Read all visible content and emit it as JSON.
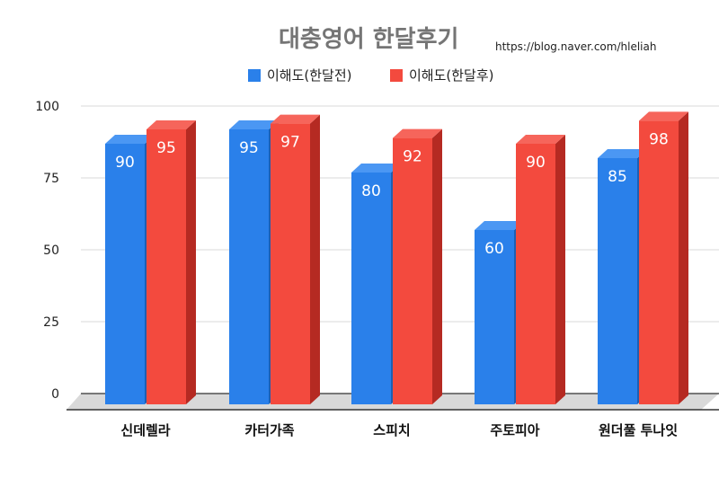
{
  "title": "대충영어 한달후기",
  "watermark": "https://blog.naver.com/hleliah",
  "colors": {
    "series_1": "#2a80ea",
    "series_1_top": "#4b97f3",
    "series_1_side": "#1d5fb3",
    "series_2": "#f34a3e",
    "series_2_top": "#f6655b",
    "series_2_side": "#b52a22",
    "grid": "#d9d9d9",
    "floor": "#d9d9d9",
    "axis": "#333333"
  },
  "chart_data": {
    "type": "bar",
    "title": "대충영어 한달후기",
    "xlabel": "",
    "ylabel": "",
    "ylim": [
      0,
      100
    ],
    "yticks": [
      "0",
      "25",
      "50",
      "75",
      "100"
    ],
    "categories": [
      "신데렐라",
      "카터가족",
      "스피치",
      "주토피아",
      "원더풀 투나잇"
    ],
    "series": [
      {
        "name": "이해도(한달전)",
        "values": [
          90,
          95,
          80,
          60,
          85
        ]
      },
      {
        "name": "이해도(한달후)",
        "values": [
          95,
          97,
          92,
          90,
          98
        ]
      }
    ],
    "legend_position": "top",
    "grid": true,
    "three_d": true
  }
}
